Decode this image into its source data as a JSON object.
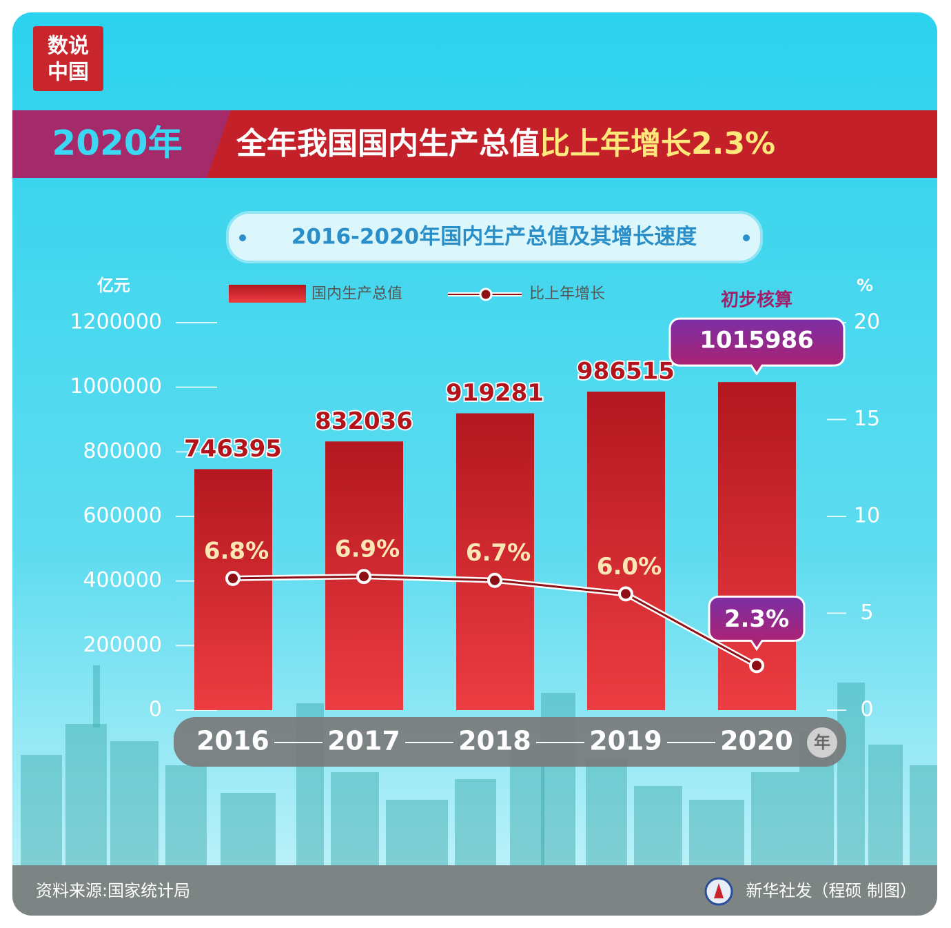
{
  "badge": {
    "line1": "数说",
    "line2": "中国"
  },
  "header": {
    "year": "2020年",
    "title": "全年我国国内生产总值",
    "highlight": "比上年增长2.3%"
  },
  "chart_data": {
    "type": "bar",
    "title": "2016-2020年国内生产总值及其增长速度",
    "categories": [
      "2016",
      "2017",
      "2018",
      "2019",
      "2020"
    ],
    "xlabel": "年",
    "ylabel": "亿元",
    "y2label": "%",
    "annotation": "初步核算",
    "series": [
      {
        "name": "国内生产总值",
        "type": "bar",
        "color": "#c62128",
        "values": [
          746395,
          832036,
          919281,
          986515,
          1015986
        ]
      },
      {
        "name": "比上年增长",
        "type": "line",
        "axis": "y2",
        "color": "#8e1016",
        "values": [
          6.8,
          6.9,
          6.7,
          6.0,
          2.3
        ],
        "value_labels": [
          "6.8%",
          "6.9%",
          "6.7%",
          "6.0%",
          "2.3%"
        ]
      }
    ],
    "ylim": [
      0,
      1200000
    ],
    "yticks": [
      0,
      200000,
      400000,
      600000,
      800000,
      1000000,
      1200000
    ],
    "y2lim": [
      0,
      20
    ],
    "y2ticks": [
      0,
      5,
      10,
      15,
      20
    ]
  },
  "footer": {
    "source": "资料来源:国家统计局",
    "credit": "新华社发（程硕 制图）"
  }
}
